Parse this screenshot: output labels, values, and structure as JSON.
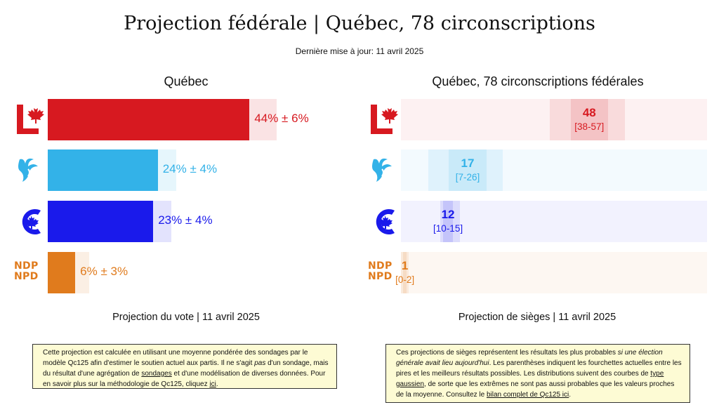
{
  "header": {
    "title": "Projection fédérale | Québec, 78 circonscriptions",
    "updated": "Dernière mise à jour: 11 avril 2025"
  },
  "colors": {
    "liberal": "#d71920",
    "bloc": "#33b2e8",
    "conservative": "#1a1aeb",
    "ndp": "#e07b1d"
  },
  "chart_data": [
    {
      "type": "bar",
      "title": "Québec",
      "caption": "Projection du vote | 11 avril 2025",
      "orientation": "horizontal",
      "parties": [
        {
          "icon": "liberal-logo-icon",
          "value": 44,
          "margin": 6,
          "label": "44% ± 6%",
          "color": "#d71920"
        },
        {
          "icon": "bloc-logo-icon",
          "value": 24,
          "margin": 4,
          "label": "24% ± 4%",
          "color": "#33b2e8"
        },
        {
          "icon": "conservative-logo-icon",
          "value": 23,
          "margin": 4,
          "label": "23% ± 4%",
          "color": "#1a1aeb"
        },
        {
          "icon": "ndp-logo-icon",
          "value": 6,
          "margin": 3,
          "label": "6% ± 3%",
          "color": "#e07b1d"
        }
      ],
      "xlim": [
        0,
        100
      ]
    },
    {
      "type": "bar",
      "title": "Québec, 78 circonscriptions fédérales",
      "caption": "Projection de sièges | 11 avril 2025",
      "orientation": "horizontal",
      "total_seats": 78,
      "parties": [
        {
          "icon": "liberal-logo-icon",
          "seats": 48,
          "low": 38,
          "high": 57,
          "range_label": "[38-57]",
          "color": "#d71920"
        },
        {
          "icon": "bloc-logo-icon",
          "seats": 17,
          "low": 7,
          "high": 26,
          "range_label": "[7-26]",
          "color": "#33b2e8"
        },
        {
          "icon": "conservative-logo-icon",
          "seats": 12,
          "low": 10,
          "high": 15,
          "range_label": "[10-15]",
          "color": "#1a1aeb"
        },
        {
          "icon": "ndp-logo-icon",
          "seats": 1,
          "low": 0,
          "high": 2,
          "range_label": "[0-2]",
          "color": "#e07b1d"
        }
      ]
    }
  ],
  "ndp_logo": {
    "line1": "NDP",
    "line2": "NPD"
  },
  "notes": {
    "left": {
      "t1": "Cette projection est calculée en utilisant une moyenne pondérée des sondages par le modèle Qc125 afin d'estimer le soutien actuel aux partis. Il ne s'agit ",
      "t1_em": "pas",
      "t2": " d'un sondage, mais du résultat d'une agrégation de ",
      "link1": "sondages",
      "t3": " et d'une modélisation de diverses données. Pour en savoir plus sur la méthodologie de Qc125, cliquez ",
      "link2": "ici",
      "t4": "."
    },
    "right": {
      "t1": "Ces projections de sièges représentent les résultats les plus probables ",
      "t1_em": "si une élection générale avait lieu aujourd'hui",
      "t2": ". Les parenthèses indiquent les fourchettes actuelles entre les pires et les meilleurs résultats possibles. Les distributions suivent des courbes de ",
      "link1": "type gaussien",
      "t3": ", de sorte que les extrêmes ne sont pas aussi probables que les valeurs proches de la moyenne. Consultez le ",
      "link2": "bilan complet de Qc125 ici",
      "t4": "."
    }
  }
}
